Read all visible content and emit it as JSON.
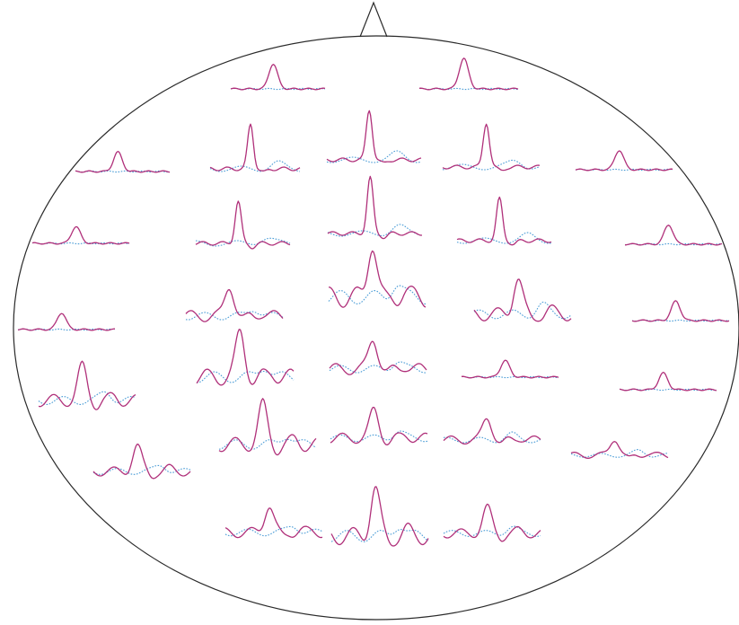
{
  "colors": {
    "outline": "#2a2a2a",
    "condition_a": "#b0307a",
    "condition_b": "#4a9cd6"
  },
  "legend": {},
  "channels": [
    {
      "id": "ch01",
      "peak": 0.45,
      "shape": "flat"
    },
    {
      "id": "ch02",
      "peak": 0.55,
      "shape": "flat"
    },
    {
      "id": "ch03",
      "peak": 0.35,
      "shape": "flat"
    },
    {
      "id": "ch04",
      "peak": 0.8,
      "shape": "sharp"
    },
    {
      "id": "ch05",
      "peak": 0.9,
      "shape": "sharp"
    },
    {
      "id": "ch06",
      "peak": 0.8,
      "shape": "sharp"
    },
    {
      "id": "ch07",
      "peak": 0.35,
      "shape": "flat"
    },
    {
      "id": "ch08",
      "peak": 0.3,
      "shape": "flat"
    },
    {
      "id": "ch09",
      "peak": 0.75,
      "shape": "sharp"
    },
    {
      "id": "ch10",
      "peak": 1.0,
      "shape": "sharp"
    },
    {
      "id": "ch11",
      "peak": 0.75,
      "shape": "sharp"
    },
    {
      "id": "ch12",
      "peak": 0.35,
      "shape": "flat"
    },
    {
      "id": "ch13",
      "peak": 0.3,
      "shape": "flat"
    },
    {
      "id": "ch14",
      "peak": 0.55,
      "shape": "wavy"
    },
    {
      "id": "ch15",
      "peak": 1.0,
      "shape": "wavy"
    },
    {
      "id": "ch16",
      "peak": 0.65,
      "shape": "wavy"
    },
    {
      "id": "ch17",
      "peak": 0.35,
      "shape": "flat"
    },
    {
      "id": "ch18",
      "peak": 0.6,
      "shape": "wavy"
    },
    {
      "id": "ch19",
      "peak": 0.8,
      "shape": "wavy"
    },
    {
      "id": "ch20",
      "peak": 0.55,
      "shape": "wavy"
    },
    {
      "id": "ch21",
      "peak": 0.3,
      "shape": "flat"
    },
    {
      "id": "ch22",
      "peak": 0.3,
      "shape": "flat"
    },
    {
      "id": "ch23",
      "peak": 0.45,
      "shape": "wavy"
    },
    {
      "id": "ch24",
      "peak": 0.7,
      "shape": "wavy"
    },
    {
      "id": "ch25",
      "peak": 0.5,
      "shape": "wavy"
    },
    {
      "id": "ch26",
      "peak": 0.4,
      "shape": "wavy"
    },
    {
      "id": "ch27",
      "peak": 0.3,
      "shape": "wavy"
    },
    {
      "id": "ch28",
      "peak": 0.5,
      "shape": "wavy"
    },
    {
      "id": "ch29",
      "peak": 0.85,
      "shape": "wavy"
    },
    {
      "id": "ch30",
      "peak": 0.45,
      "shape": "wavy"
    }
  ]
}
